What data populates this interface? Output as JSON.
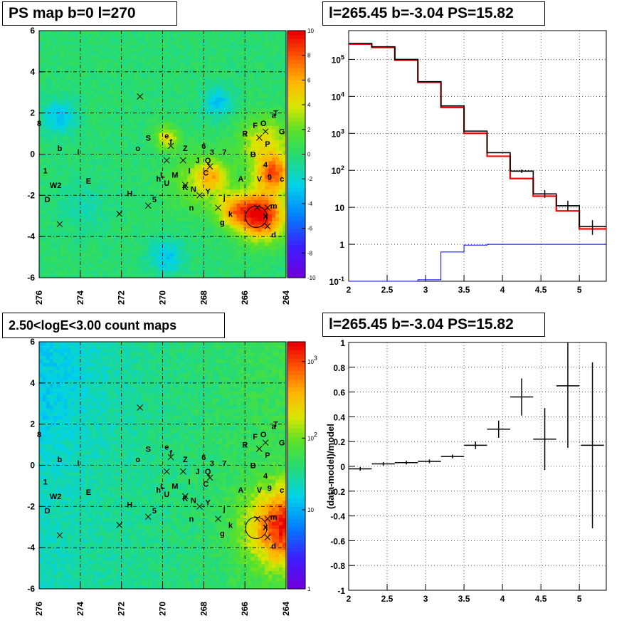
{
  "panels": {
    "ps_map_title": "PS map b=0 l=270",
    "spectrum_title": "l=265.45 b=-3.04 PS=15.82",
    "count_map_title": "2.50<logE<3.00 count maps",
    "residual_title": "l=265.45 b=-3.04 PS=15.82"
  },
  "chart_data": [
    {
      "type": "heatmap",
      "name": "PS map",
      "title": "PS map b=0 l=270",
      "xlim": [
        276,
        264
      ],
      "ylim": [
        -6,
        6
      ],
      "xticks": [
        "276",
        "274",
        "272",
        "270",
        "268",
        "266",
        "264"
      ],
      "yticks": [
        "-6",
        "-4",
        "-2",
        "0",
        "2",
        "4",
        "6"
      ],
      "zlim": [
        -10,
        10
      ],
      "zticks": [
        "-10",
        "-8",
        "-6",
        "-4",
        "-2",
        "0",
        "2",
        "4",
        "6",
        "8",
        "10"
      ],
      "grid": true,
      "source_circle": {
        "l": 265.45,
        "b": -3.04
      },
      "labels": [
        {
          "t": "S",
          "l": 270.7,
          "b": 0.8
        },
        {
          "t": "e",
          "l": 269.8,
          "b": 0.9
        },
        {
          "t": "f",
          "l": 269.6,
          "b": 0.6
        },
        {
          "t": "o",
          "l": 271.2,
          "b": 0.3
        },
        {
          "t": "Z",
          "l": 268.9,
          "b": 0.3
        },
        {
          "t": "6",
          "l": 268.0,
          "b": 0.4
        },
        {
          "t": "3",
          "l": 267.6,
          "b": 0.1
        },
        {
          "t": "7",
          "l": 267.0,
          "b": 0.1
        },
        {
          "t": "J",
          "l": 268.3,
          "b": -0.3
        },
        {
          "t": "Q",
          "l": 267.8,
          "b": -0.3
        },
        {
          "t": "M",
          "l": 269.4,
          "b": -1.0
        },
        {
          "t": "I",
          "l": 268.7,
          "b": -0.8
        },
        {
          "t": "C",
          "l": 267.9,
          "b": -0.9
        },
        {
          "t": "h",
          "l": 270.2,
          "b": -1.2
        },
        {
          "t": "L",
          "l": 270.0,
          "b": -1.0
        },
        {
          "t": "U",
          "l": 269.8,
          "b": -1.4
        },
        {
          "t": "K",
          "l": 268.9,
          "b": -1.6
        },
        {
          "t": "N",
          "l": 268.5,
          "b": -1.7
        },
        {
          "t": "Y",
          "l": 267.8,
          "b": -1.8
        },
        {
          "t": "j",
          "l": 267.0,
          "b": -2.1
        },
        {
          "t": "5",
          "l": 270.4,
          "b": -2.2
        },
        {
          "t": "n",
          "l": 268.6,
          "b": -2.6
        },
        {
          "t": "k",
          "l": 266.7,
          "b": -2.9
        },
        {
          "t": "g",
          "l": 267.1,
          "b": -3.3
        },
        {
          "t": "A",
          "l": 266.2,
          "b": -1.2
        },
        {
          "t": "R",
          "l": 266.0,
          "b": 1.0
        },
        {
          "t": "F",
          "l": 265.5,
          "b": 1.4
        },
        {
          "t": "O",
          "l": 265.1,
          "b": 1.5
        },
        {
          "t": "a",
          "l": 264.6,
          "b": 1.9
        },
        {
          "t": "T",
          "l": 264.5,
          "b": 2.0
        },
        {
          "t": "G",
          "l": 264.2,
          "b": 1.1
        },
        {
          "t": "B",
          "l": 265.6,
          "b": 0.0
        },
        {
          "t": "P",
          "l": 264.9,
          "b": 0.5
        },
        {
          "t": "4",
          "l": 265.0,
          "b": -0.5
        },
        {
          "t": "9",
          "l": 264.8,
          "b": -1.1
        },
        {
          "t": "V",
          "l": 265.3,
          "b": -1.2
        },
        {
          "t": "c",
          "l": 264.2,
          "b": -1.2
        },
        {
          "t": "m",
          "l": 264.6,
          "b": -2.5
        },
        {
          "t": "X",
          "l": 265.0,
          "b": -3.0
        },
        {
          "t": "d",
          "l": 264.6,
          "b": -3.9
        },
        {
          "t": "8",
          "l": 276.0,
          "b": 1.5
        },
        {
          "t": "b",
          "l": 275.0,
          "b": 0.3
        },
        {
          "t": "l",
          "l": 274.1,
          "b": 0.1
        },
        {
          "t": "1",
          "l": 275.7,
          "b": -0.8
        },
        {
          "t": "W2",
          "l": 275.2,
          "b": -1.5
        },
        {
          "t": "E",
          "l": 273.6,
          "b": -1.3
        },
        {
          "t": "D",
          "l": 275.6,
          "b": -2.2
        },
        {
          "t": "H",
          "l": 271.6,
          "b": -1.9
        }
      ],
      "cross_markers": [
        {
          "l": 271.1,
          "b": 2.8
        },
        {
          "l": 269.6,
          "b": 0.4
        },
        {
          "l": 269.0,
          "b": -0.3
        },
        {
          "l": 269.8,
          "b": -0.3
        },
        {
          "l": 267.7,
          "b": -0.6
        },
        {
          "l": 268.9,
          "b": -1.5
        },
        {
          "l": 268.2,
          "b": -2.0
        },
        {
          "l": 267.3,
          "b": -2.6
        },
        {
          "l": 265.3,
          "b": 0.8
        },
        {
          "l": 265.0,
          "b": 1.1
        },
        {
          "l": 264.9,
          "b": -2.6
        },
        {
          "l": 264.9,
          "b": -3.5
        },
        {
          "l": 272.1,
          "b": -2.9
        },
        {
          "l": 270.7,
          "b": -2.5
        },
        {
          "l": 275.0,
          "b": -3.4
        },
        {
          "l": 265.4,
          "b": -2.6
        }
      ]
    },
    {
      "type": "line",
      "name": "Spectrum",
      "title": "l=265.45 b=-3.04 PS=15.82",
      "xlim": [
        2,
        5.35
      ],
      "ylim": [
        0.1,
        600000
      ],
      "yscale": "log",
      "xticks": [
        "2",
        "2.5",
        "3",
        "3.5",
        "4",
        "4.5",
        "5"
      ],
      "yticks": [
        "10^-1",
        "1",
        "10",
        "10^2",
        "10^3",
        "10^4",
        "10^5"
      ],
      "grid": true,
      "bin_edges": [
        2,
        2.3,
        2.6,
        2.9,
        3.2,
        3.5,
        3.8,
        4.1,
        4.4,
        4.7,
        5.0,
        5.35
      ],
      "series": [
        {
          "color": "#ff0000",
          "values": [
            260000,
            210000,
            95000,
            24000,
            5000,
            1000,
            240,
            60,
            20,
            8,
            2.6
          ]
        },
        {
          "color": "#000000",
          "values": [
            270000,
            220000,
            100000,
            25000,
            5500,
            1150,
            300,
            95,
            23,
            11,
            3
          ]
        },
        {
          "color": "#0000ff",
          "values": [
            0.1,
            0.1,
            0.1,
            0.11,
            0.62,
            0.95,
            1.0,
            1.0,
            1.0,
            1.0,
            1.0
          ]
        }
      ],
      "data_points": [
        {
          "x": 4.25,
          "y": 95,
          "ylo": 85,
          "yhi": 105
        },
        {
          "x": 4.55,
          "y": 23,
          "ylo": 18,
          "yhi": 29
        },
        {
          "x": 4.85,
          "y": 11,
          "ylo": 8,
          "yhi": 15
        },
        {
          "x": 5.17,
          "y": 3,
          "ylo": 1.8,
          "yhi": 4.5
        }
      ]
    },
    {
      "type": "heatmap",
      "name": "Count map",
      "title": "2.50<logE<3.00 count maps",
      "xlim": [
        276,
        264
      ],
      "ylim": [
        -6,
        6
      ],
      "xticks": [
        "276",
        "274",
        "272",
        "270",
        "268",
        "266",
        "264"
      ],
      "yticks": [
        "-6",
        "-4",
        "-2",
        "0",
        "2",
        "4",
        "6"
      ],
      "zscale": "log",
      "zticks": [
        "1",
        "10",
        "10^2",
        "10^3"
      ],
      "grid": true,
      "source_circle": {
        "l": 265.45,
        "b": -3.04
      }
    },
    {
      "type": "scatter",
      "name": "Residuals",
      "title": "l=265.45 b=-3.04 PS=15.82",
      "xlim": [
        2,
        5.35
      ],
      "ylim": [
        -1,
        1
      ],
      "ylabel": "(data-model)/model",
      "xticks": [
        "2",
        "2.5",
        "3",
        "3.5",
        "4",
        "4.5",
        "5"
      ],
      "yticks": [
        "-1",
        "-0.8",
        "-0.6",
        "-0.4",
        "-0.2",
        "0",
        "0.2",
        "0.4",
        "0.6",
        "0.8",
        "1"
      ],
      "grid": true,
      "points": [
        {
          "x": 2.15,
          "xerr": 0.15,
          "y": -0.02,
          "yerr": 0.015
        },
        {
          "x": 2.45,
          "xerr": 0.15,
          "y": 0.02,
          "yerr": 0.015
        },
        {
          "x": 2.75,
          "xerr": 0.15,
          "y": 0.03,
          "yerr": 0.015
        },
        {
          "x": 3.05,
          "xerr": 0.15,
          "y": 0.04,
          "yerr": 0.015
        },
        {
          "x": 3.35,
          "xerr": 0.15,
          "y": 0.08,
          "yerr": 0.015
        },
        {
          "x": 3.65,
          "xerr": 0.15,
          "y": 0.17,
          "yerr": 0.03
        },
        {
          "x": 3.95,
          "xerr": 0.15,
          "y": 0.3,
          "yerr": 0.07
        },
        {
          "x": 4.25,
          "xerr": 0.15,
          "y": 0.56,
          "yerr": 0.15
        },
        {
          "x": 4.55,
          "xerr": 0.15,
          "y": 0.22,
          "yerr": 0.25
        },
        {
          "x": 4.85,
          "xerr": 0.15,
          "y": 0.65,
          "yerr": 0.5
        },
        {
          "x": 5.17,
          "xerr": 0.15,
          "y": 0.17,
          "yerr": 0.67
        }
      ]
    }
  ]
}
